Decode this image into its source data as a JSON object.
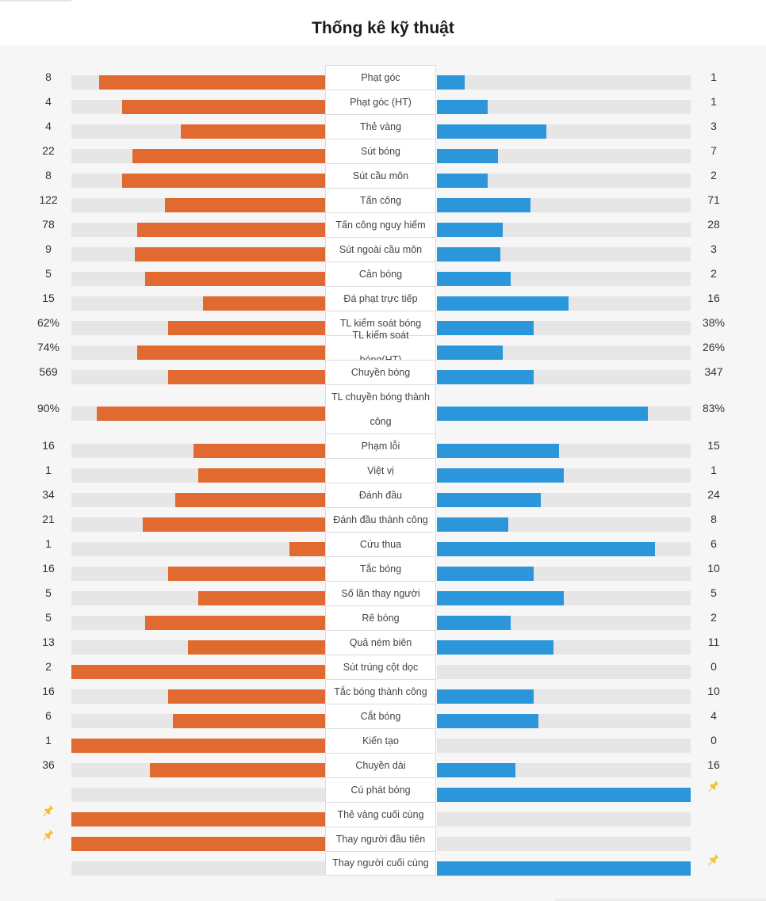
{
  "title": "Thống kê kỹ thuật",
  "colors": {
    "home": "#e06a30",
    "away": "#2b96d9",
    "track": "#e6e6e6",
    "pin": "#f2c230"
  },
  "stats": [
    {
      "label": "Phạt góc",
      "home": "8",
      "away": "1",
      "home_share": 0.89,
      "away_share": 0.11
    },
    {
      "label": "Phạt góc (HT)",
      "home": "4",
      "away": "1",
      "home_share": 0.8,
      "away_share": 0.2
    },
    {
      "label": "Thẻ vàng",
      "home": "4",
      "away": "3",
      "home_share": 0.57,
      "away_share": 0.43
    },
    {
      "label": "Sút bóng",
      "home": "22",
      "away": "7",
      "home_share": 0.76,
      "away_share": 0.24
    },
    {
      "label": "Sút cầu môn",
      "home": "8",
      "away": "2",
      "home_share": 0.8,
      "away_share": 0.2
    },
    {
      "label": "Tấn công",
      "home": "122",
      "away": "71",
      "home_share": 0.63,
      "away_share": 0.37
    },
    {
      "label": "Tấn công nguy hiểm",
      "home": "78",
      "away": "28",
      "home_share": 0.74,
      "away_share": 0.26
    },
    {
      "label": "Sút ngoài cầu môn",
      "home": "9",
      "away": "3",
      "home_share": 0.75,
      "away_share": 0.25
    },
    {
      "label": "Cản bóng",
      "home": "5",
      "away": "2",
      "home_share": 0.71,
      "away_share": 0.29
    },
    {
      "label": "Đá phạt trực tiếp",
      "home": "15",
      "away": "16",
      "home_share": 0.48,
      "away_share": 0.52
    },
    {
      "label": "TL kiểm soát bóng",
      "home": "62%",
      "away": "38%",
      "home_share": 0.62,
      "away_share": 0.38
    },
    {
      "label": "TL kiểm soát bóng(HT)",
      "home": "74%",
      "away": "26%",
      "home_share": 0.74,
      "away_share": 0.26
    },
    {
      "label": "Chuyền bóng",
      "home": "569",
      "away": "347",
      "home_share": 0.62,
      "away_share": 0.38
    },
    {
      "label": "TL chuyền bóng thành công",
      "home": "90%",
      "away": "83%",
      "home_share": 0.9,
      "away_share": 0.83,
      "tall": true
    },
    {
      "label": "Phạm lỗi",
      "home": "16",
      "away": "15",
      "home_share": 0.52,
      "away_share": 0.48
    },
    {
      "label": "Việt vị",
      "home": "1",
      "away": "1",
      "home_share": 0.5,
      "away_share": 0.5
    },
    {
      "label": "Đánh đầu",
      "home": "34",
      "away": "24",
      "home_share": 0.59,
      "away_share": 0.41
    },
    {
      "label": "Đánh đầu thành công",
      "home": "21",
      "away": "8",
      "home_share": 0.72,
      "away_share": 0.28
    },
    {
      "label": "Cứu thua",
      "home": "1",
      "away": "6",
      "home_share": 0.14,
      "away_share": 0.86
    },
    {
      "label": "Tắc bóng",
      "home": "16",
      "away": "10",
      "home_share": 0.62,
      "away_share": 0.38
    },
    {
      "label": "Số lần thay người",
      "home": "5",
      "away": "5",
      "home_share": 0.5,
      "away_share": 0.5
    },
    {
      "label": "Rê bóng",
      "home": "5",
      "away": "2",
      "home_share": 0.71,
      "away_share": 0.29
    },
    {
      "label": "Quả ném biên",
      "home": "13",
      "away": "11",
      "home_share": 0.54,
      "away_share": 0.46
    },
    {
      "label": "Sút trúng cột dọc",
      "home": "2",
      "away": "0",
      "home_share": 1.0,
      "away_share": 0.0
    },
    {
      "label": "Tắc bóng thành công",
      "home": "16",
      "away": "10",
      "home_share": 0.62,
      "away_share": 0.38
    },
    {
      "label": "Cắt bóng",
      "home": "6",
      "away": "4",
      "home_share": 0.6,
      "away_share": 0.4
    },
    {
      "label": "Kiến tạo",
      "home": "1",
      "away": "0",
      "home_share": 1.0,
      "away_share": 0.0
    },
    {
      "label": "Chuyền dài",
      "home": "36",
      "away": "16",
      "home_share": 0.69,
      "away_share": 0.31
    },
    {
      "label": "Cú phát bóng",
      "home": "",
      "away": "",
      "home_share": 0.0,
      "away_share": 1.0,
      "pin": "away"
    },
    {
      "label": "Thẻ vàng cuối cùng",
      "home": "",
      "away": "",
      "home_share": 1.0,
      "away_share": 0.0,
      "pin": "home"
    },
    {
      "label": "Thay người đầu tiên",
      "home": "",
      "away": "",
      "home_share": 1.0,
      "away_share": 0.0,
      "pin": "home"
    },
    {
      "label": "Thay người cuối cùng",
      "home": "",
      "away": "",
      "home_share": 0.0,
      "away_share": 1.0,
      "pin": "away"
    }
  ]
}
